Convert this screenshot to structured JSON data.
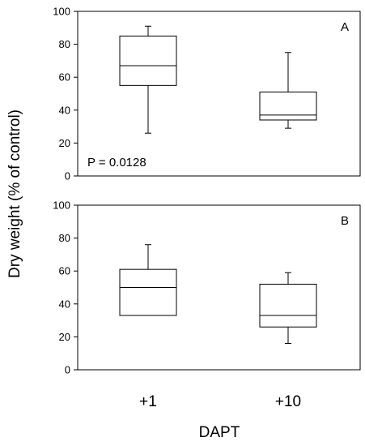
{
  "chart_data": {
    "type": "box",
    "ylabel": "Dry weight (% of control)",
    "xlabel": "DAPT",
    "categories": [
      "+1",
      "+10"
    ],
    "ylim": [
      0,
      100
    ],
    "yticks": [
      0,
      20,
      40,
      60,
      80,
      100
    ],
    "panels": [
      {
        "label": "A",
        "annotation": "P = 0.0128",
        "boxes": [
          {
            "category": "+1",
            "min": 26,
            "q1": 55,
            "median": 67,
            "q3": 85,
            "max": 91
          },
          {
            "category": "+10",
            "min": 29,
            "q1": 34,
            "median": 37,
            "q3": 51,
            "max": 75
          }
        ]
      },
      {
        "label": "B",
        "annotation": "",
        "boxes": [
          {
            "category": "+1",
            "min": 33,
            "q1": 33,
            "median": 50,
            "q3": 61,
            "max": 76
          },
          {
            "category": "+10",
            "min": 16,
            "q1": 26,
            "median": 33,
            "q3": 52,
            "max": 59
          }
        ]
      }
    ]
  }
}
